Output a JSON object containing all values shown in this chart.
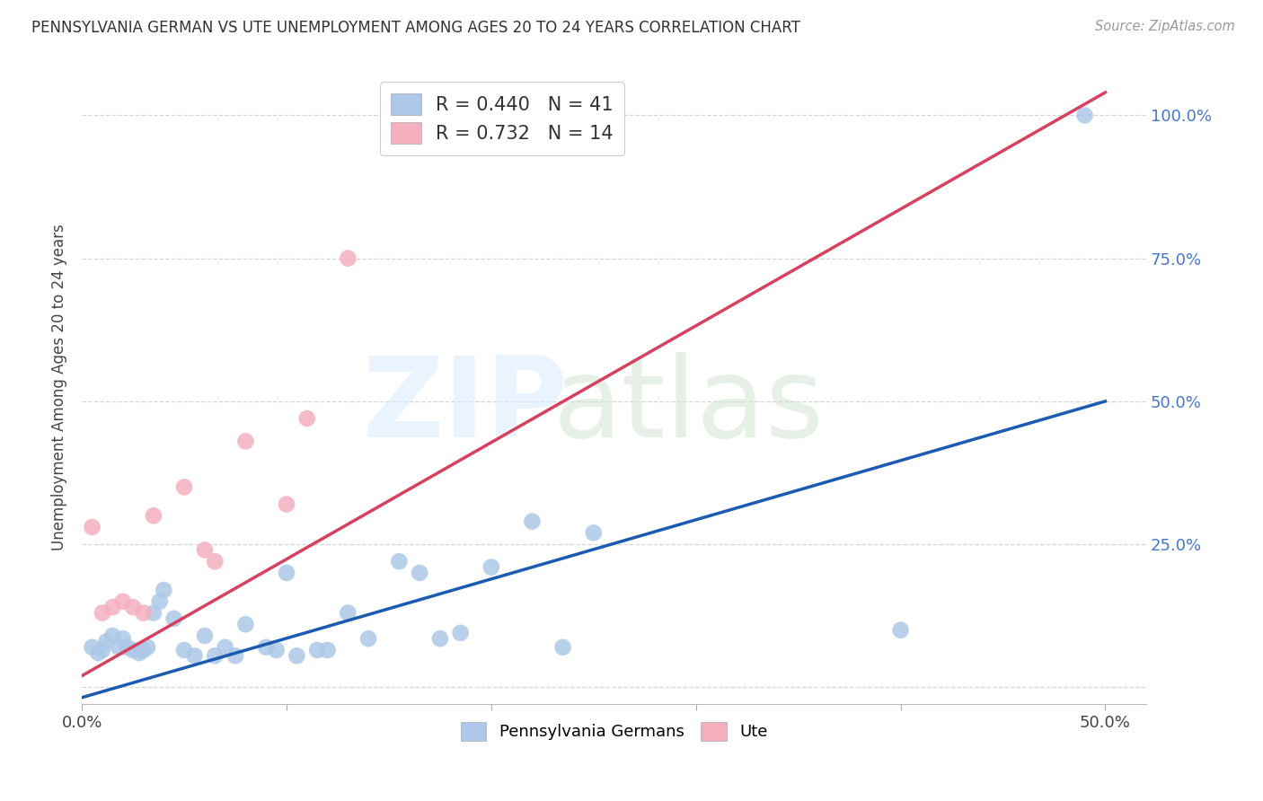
{
  "title": "PENNSYLVANIA GERMAN VS UTE UNEMPLOYMENT AMONG AGES 20 TO 24 YEARS CORRELATION CHART",
  "source": "Source: ZipAtlas.com",
  "ylabel": "Unemployment Among Ages 20 to 24 years",
  "xlim": [
    0.0,
    0.52
  ],
  "ylim": [
    -0.03,
    1.08
  ],
  "xtick_positions": [
    0.0,
    0.1,
    0.2,
    0.3,
    0.4,
    0.5
  ],
  "ytick_positions": [
    0.0,
    0.25,
    0.5,
    0.75,
    1.0
  ],
  "xtick_labels_left": [
    "0.0%",
    "",
    "",
    "",
    "",
    "50.0%"
  ],
  "ytick_labels_right": [
    "",
    "25.0%",
    "50.0%",
    "75.0%",
    "100.0%"
  ],
  "blue_r": "0.440",
  "blue_n": "41",
  "pink_r": "0.732",
  "pink_n": "14",
  "blue_dot_color": "#adc8e8",
  "pink_dot_color": "#f5b0c0",
  "blue_line_color": "#1a5ab0",
  "pink_line_color": "#d84060",
  "blue_scatter_x": [
    0.005,
    0.008,
    0.01,
    0.012,
    0.015,
    0.018,
    0.02,
    0.022,
    0.025,
    0.028,
    0.03,
    0.032,
    0.035,
    0.038,
    0.04,
    0.045,
    0.05,
    0.055,
    0.06,
    0.065,
    0.07,
    0.075,
    0.08,
    0.09,
    0.095,
    0.1,
    0.105,
    0.115,
    0.12,
    0.13,
    0.14,
    0.155,
    0.165,
    0.175,
    0.185,
    0.2,
    0.22,
    0.235,
    0.25,
    0.4,
    0.49
  ],
  "blue_scatter_y": [
    0.07,
    0.06,
    0.065,
    0.08,
    0.09,
    0.07,
    0.085,
    0.07,
    0.065,
    0.06,
    0.065,
    0.07,
    0.13,
    0.15,
    0.17,
    0.12,
    0.065,
    0.055,
    0.09,
    0.055,
    0.07,
    0.055,
    0.11,
    0.07,
    0.065,
    0.2,
    0.055,
    0.065,
    0.065,
    0.13,
    0.085,
    0.22,
    0.2,
    0.085,
    0.095,
    0.21,
    0.29,
    0.07,
    0.27,
    0.1,
    1.0
  ],
  "pink_scatter_x": [
    0.005,
    0.01,
    0.015,
    0.02,
    0.025,
    0.03,
    0.035,
    0.05,
    0.06,
    0.065,
    0.08,
    0.1,
    0.11,
    0.13
  ],
  "pink_scatter_y": [
    0.28,
    0.13,
    0.14,
    0.15,
    0.14,
    0.13,
    0.3,
    0.35,
    0.24,
    0.22,
    0.43,
    0.32,
    0.47,
    0.75
  ],
  "blue_trend_x0": 0.0,
  "blue_trend_x1": 0.5,
  "blue_trend_y0": -0.018,
  "blue_trend_y1": 0.5,
  "pink_trend_x0": 0.0,
  "pink_trend_x1": 0.5,
  "pink_trend_y0": 0.02,
  "pink_trend_y1": 1.04
}
